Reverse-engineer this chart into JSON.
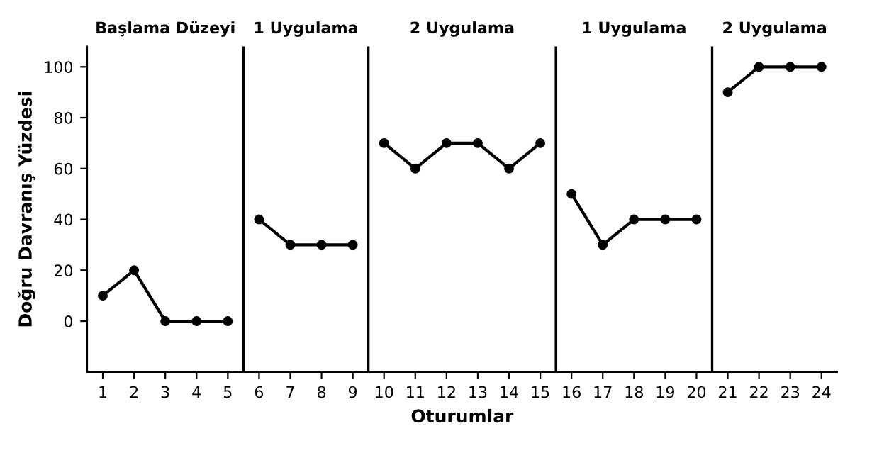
{
  "chart_data": {
    "type": "line",
    "xlabel": "Oturumlar",
    "ylabel": "Doğru Davranış Yüzdesi",
    "annotations": [
      "Başlama Düzeyi",
      "1 Uygulama",
      "2 Uygulama",
      "1 Uygulama",
      "2 Uygulama"
    ],
    "series": [
      {
        "color": "#000000",
        "x": [
          1,
          2,
          3,
          4,
          5
        ],
        "values": [
          10,
          20,
          0,
          0,
          0
        ]
      },
      {
        "color": "#000000",
        "x": [
          6,
          7,
          8,
          9
        ],
        "values": [
          40,
          30,
          30,
          30
        ]
      },
      {
        "color": "#000000",
        "x": [
          10,
          11,
          12,
          13,
          14,
          15
        ],
        "values": [
          70,
          60,
          70,
          70,
          60,
          70
        ]
      },
      {
        "color": "#000000",
        "x": [
          16,
          17,
          18,
          19,
          20
        ],
        "values": [
          50,
          30,
          40,
          40,
          40
        ]
      },
      {
        "color": "#000000",
        "x": [
          21,
          22,
          23,
          24
        ],
        "values": [
          90,
          100,
          100,
          100
        ]
      }
    ],
    "ref_lines": [
      {
        "axis": "x",
        "value": 5.5,
        "color": "#000000"
      },
      {
        "axis": "x",
        "value": 9.5,
        "color": "#000000"
      },
      {
        "axis": "x",
        "value": 15.5,
        "color": "#000000"
      },
      {
        "axis": "x",
        "value": 20.5,
        "color": "#000000"
      }
    ],
    "xlim": [
      0.5,
      24.5
    ],
    "ylim": [
      -20,
      108
    ],
    "xticks": [
      1,
      2,
      3,
      4,
      5,
      6,
      7,
      8,
      9,
      10,
      11,
      12,
      13,
      14,
      15,
      16,
      17,
      18,
      19,
      20,
      21,
      22,
      23,
      24
    ],
    "yticks": [
      0,
      20,
      40,
      60,
      80,
      100
    ],
    "grid": false,
    "legend": false,
    "marker": "circle",
    "line_style": "solid"
  }
}
